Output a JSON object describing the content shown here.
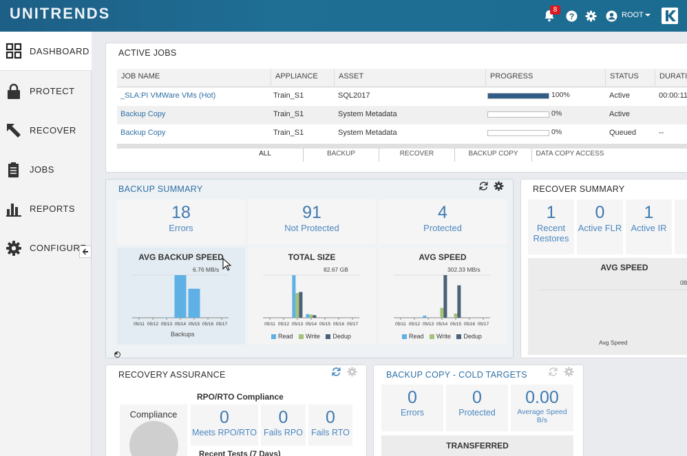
{
  "header": {
    "logo": "UNITRENDS",
    "notifications_count": "8",
    "user": "ROOT",
    "icons": [
      "bell-icon",
      "help-icon",
      "gear-icon",
      "user-icon",
      "brand-icon"
    ]
  },
  "sidebar": {
    "items": [
      {
        "label": "DASHBOARD",
        "icon": "dashboard-icon"
      },
      {
        "label": "PROTECT",
        "icon": "lock-icon"
      },
      {
        "label": "RECOVER",
        "icon": "recover-arrow-icon"
      },
      {
        "label": "JOBS",
        "icon": "clipboard-icon"
      },
      {
        "label": "REPORTS",
        "icon": "bar-chart-icon"
      },
      {
        "label": "CONFIGURE",
        "icon": "gear-icon"
      }
    ]
  },
  "active_jobs": {
    "title": "ACTIVE JOBS",
    "columns": [
      "JOB NAME",
      "APPLIANCE",
      "ASSET",
      "PROGRESS",
      "STATUS",
      "DURATI"
    ],
    "rows": [
      {
        "job": "_SLA:PI VMWare VMs (Hot)",
        "appliance": "Train_S1",
        "asset": "SQL2017",
        "progress": 100,
        "progress_label": "100%",
        "status": "Active",
        "duration": "00:00:11"
      },
      {
        "job": "Backup Copy",
        "appliance": "Train_S1",
        "asset": "System Metadata",
        "progress": 0,
        "progress_label": "0%",
        "status": "Active",
        "duration": ""
      },
      {
        "job": "Backup Copy",
        "appliance": "Train_S1",
        "asset": "System Metadata",
        "progress": 0,
        "progress_label": "0%",
        "status": "Queued",
        "duration": "--"
      }
    ],
    "filters": [
      "ALL",
      "BACKUP",
      "RECOVER",
      "BACKUP COPY",
      "DATA COPY ACCESS"
    ]
  },
  "backup_summary": {
    "title": "BACKUP SUMMARY",
    "tiles": [
      {
        "value": "18",
        "label": "Errors"
      },
      {
        "value": "91",
        "label": "Not Protected"
      },
      {
        "value": "4",
        "label": "Protected"
      }
    ],
    "charts": [
      {
        "title": "AVG BACKUP SPEED",
        "value": "6.76 MB/s",
        "xlabel": "Backups"
      },
      {
        "title": "TOTAL SIZE",
        "value": "82.67 GB"
      },
      {
        "title": "AVG SPEED",
        "value": "302.33 MB/s"
      }
    ],
    "legend": [
      "Read",
      "Write",
      "Dedup"
    ]
  },
  "recover_summary": {
    "title": "RECOVER SUMMARY",
    "tiles": [
      {
        "value": "1",
        "label": "Recent",
        "label2": "Restores"
      },
      {
        "value": "0",
        "label": "Active FLR",
        "label2": ""
      },
      {
        "value": "1",
        "label": "Active IR",
        "label2": ""
      }
    ],
    "chart_title": "AVG SPEED",
    "chart_value": "0B",
    "chart_xlabel": "Avg Speed"
  },
  "recovery_assurance": {
    "title": "RECOVERY ASSURANCE",
    "subtitle": "RPO/RTO Compliance",
    "compliance_label": "Compliance",
    "tiles": [
      {
        "value": "0",
        "label": "Meets RPO/RTO"
      },
      {
        "value": "0",
        "label": "Fails RPO"
      },
      {
        "value": "0",
        "label": "Fails RTO"
      }
    ],
    "recent_tests": "Recent Tests (7 Days)"
  },
  "backup_copy": {
    "title": "BACKUP COPY - COLD TARGETS",
    "tiles": [
      {
        "value": "0",
        "label": "Errors",
        "label2": ""
      },
      {
        "value": "0",
        "label": "Protected",
        "label2": ""
      },
      {
        "value": "0.00",
        "label": "Average Speed",
        "label2": "B/s"
      }
    ],
    "transferred_label": "TRANSFERRED"
  },
  "chart_data": [
    {
      "type": "bar",
      "title": "AVG BACKUP SPEED",
      "xlabel": "Backups",
      "categories": [
        "05/11",
        "05/12",
        "05/13",
        "05/14",
        "05/15",
        "05/16",
        "05/17"
      ],
      "series": [
        {
          "values": [
            0,
            0,
            0.05,
            6.76,
            4.6,
            0,
            0
          ]
        }
      ],
      "colors": [
        "#5eb0e5"
      ]
    },
    {
      "type": "bar",
      "title": "TOTAL SIZE",
      "categories": [
        "05/11",
        "05/12",
        "05/13",
        "05/14",
        "05/15",
        "05/16",
        "05/17"
      ],
      "series": [
        {
          "name": "Read",
          "values": [
            0,
            0,
            82.67,
            7,
            0,
            0,
            0
          ]
        },
        {
          "name": "Write",
          "values": [
            0,
            0,
            48,
            6,
            0,
            0,
            0
          ]
        },
        {
          "name": "Dedup",
          "values": [
            0,
            0,
            50,
            5,
            0,
            0,
            0
          ]
        }
      ],
      "colors": [
        "#5eb0e5",
        "#a4c27a",
        "#4a6178"
      ]
    },
    {
      "type": "bar",
      "title": "AVG SPEED",
      "categories": [
        "05/11",
        "05/12",
        "05/13",
        "05/14",
        "05/15",
        "05/16",
        "05/17"
      ],
      "series": [
        {
          "name": "Read",
          "values": [
            0,
            0,
            15,
            0,
            0,
            0,
            0
          ]
        },
        {
          "name": "Write",
          "values": [
            0,
            0,
            0,
            70,
            30,
            0,
            0
          ]
        },
        {
          "name": "Dedup",
          "values": [
            0,
            0,
            0,
            302.33,
            230,
            0,
            0
          ]
        }
      ],
      "colors": [
        "#5eb0e5",
        "#a4c27a",
        "#4a6178"
      ]
    }
  ]
}
